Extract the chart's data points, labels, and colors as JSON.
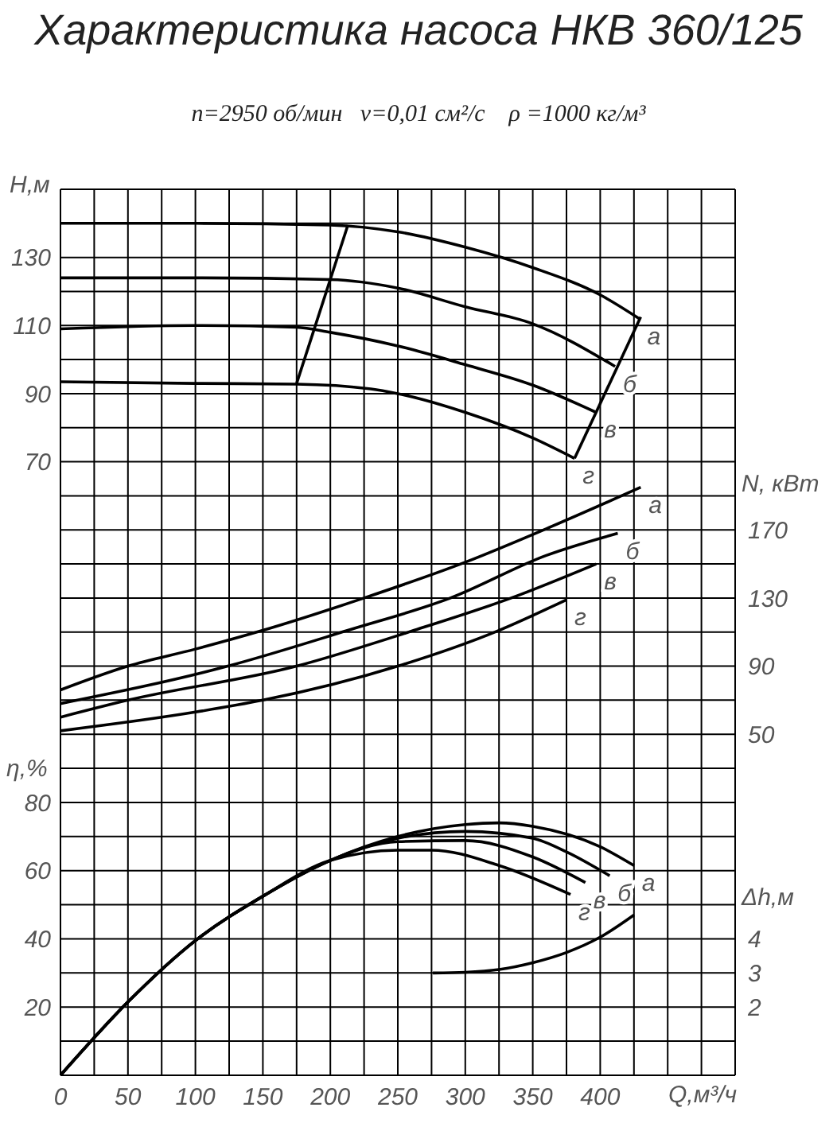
{
  "chart_data": [
    {
      "type": "line",
      "title": "Характеристика насоса НКВ 360/125",
      "subtitle": "n=2950 об/мин   ν=0,01 см²/с    ρ =1000 кг/м³",
      "ylabel": "H,м",
      "y2label": "N, кВт",
      "xlim": [
        0,
        500
      ],
      "xticks": [
        0,
        50,
        100,
        150,
        200,
        250,
        300,
        350,
        400
      ],
      "ylim": [
        -20,
        150
      ],
      "yticks": [
        70,
        90,
        110,
        130
      ],
      "y2lim": [
        30,
        370
      ],
      "y2ticks": [
        50,
        90,
        130,
        170
      ],
      "tick_labels": "y",
      "grid": true,
      "marker": "none",
      "line_style": "solid",
      "series": [
        {
          "name": "а",
          "color": "#000000",
          "x": [
            0,
            100,
            200,
            250,
            300,
            350,
            400,
            429
          ],
          "values": [
            140,
            140,
            139.5,
            137.5,
            133,
            127,
            119,
            112
          ]
        },
        {
          "name": "б",
          "color": "#000000",
          "x": [
            0,
            100,
            200,
            250,
            300,
            350,
            411
          ],
          "values": [
            124,
            124,
            123.5,
            121,
            115.5,
            110.5,
            98
          ]
        },
        {
          "name": "в",
          "color": "#000000",
          "x": [
            0,
            100,
            175,
            200,
            250,
            300,
            350,
            397
          ],
          "values": [
            109,
            110,
            109.5,
            108,
            104,
            98.5,
            92.5,
            84.5
          ]
        },
        {
          "name": "г",
          "color": "#000000",
          "x": [
            0,
            100,
            175,
            230,
            250,
            300,
            350,
            381
          ],
          "values": [
            93.5,
            93,
            92.8,
            91.4,
            90,
            84.5,
            77,
            71
          ]
        },
        {
          "color": "#000000",
          "x": [
            175,
            213
          ],
          "values": [
            93,
            139.5
          ]
        },
        {
          "color": "#000000",
          "x": [
            381,
            430
          ],
          "values": [
            71,
            112.5
          ]
        },
        {
          "name": "а",
          "color": "#000000",
          "axis": "y2",
          "x": [
            0,
            50,
            100,
            150,
            225,
            300,
            364,
            430
          ],
          "values": [
            76,
            90,
            100,
            111,
            130,
            151,
            172,
            195
          ]
        },
        {
          "name": "б",
          "color": "#000000",
          "axis": "y2",
          "x": [
            0,
            124,
            213,
            289,
            360,
            413
          ],
          "values": [
            68,
            90,
            111,
            130,
            155,
            168
          ]
        },
        {
          "name": "в",
          "color": "#000000",
          "axis": "y2",
          "x": [
            0,
            50,
            175,
            262,
            334,
            397
          ],
          "values": [
            60,
            70,
            90,
            111,
            130,
            150
          ]
        },
        {
          "name": "г",
          "color": "#000000",
          "axis": "y2",
          "x": [
            0,
            100,
            150,
            250,
            325,
            375
          ],
          "values": [
            52,
            63,
            70,
            90,
            111,
            129
          ]
        }
      ]
    },
    {
      "type": "line",
      "xlabel": "Q,м³/ч",
      "ylabel": "η,%",
      "y2label": "Δh,м",
      "xlim": [
        0,
        500
      ],
      "xticks": [
        0,
        50,
        100,
        150,
        200,
        250,
        300,
        350,
        400
      ],
      "ylim": [
        0,
        90
      ],
      "yticks": [
        20,
        40,
        60,
        80
      ],
      "y2lim": [
        0,
        9
      ],
      "y2ticks": [
        2,
        3,
        4
      ],
      "grid": true,
      "marker": "none",
      "line_style": "solid",
      "series": [
        {
          "name": "а",
          "color": "#000000",
          "x": [
            0,
            50,
            100,
            150,
            200,
            250,
            300,
            325,
            350,
            400,
            425
          ],
          "values": [
            0,
            21.5,
            39.5,
            52.5,
            63,
            70,
            73.5,
            74,
            73,
            67,
            61.5
          ]
        },
        {
          "name": "б",
          "color": "#000000",
          "x": [
            0,
            50,
            100,
            150,
            200,
            250,
            300,
            350,
            375,
            407
          ],
          "values": [
            0,
            21.5,
            39.5,
            52.5,
            63,
            69.5,
            71.5,
            69.5,
            65.5,
            58.5
          ]
        },
        {
          "name": "в",
          "color": "#000000",
          "x": [
            0,
            50,
            100,
            150,
            200,
            250,
            300,
            350,
            389
          ],
          "values": [
            0,
            21.5,
            39.5,
            52.5,
            63,
            68.5,
            68.8,
            64,
            56.5
          ]
        },
        {
          "name": "г",
          "color": "#000000",
          "x": [
            0,
            50,
            100,
            150,
            200,
            250,
            275,
            325,
            378
          ],
          "values": [
            0,
            21.5,
            39.5,
            52.5,
            63,
            66,
            66,
            61.5,
            53
          ]
        },
        {
          "color": "#000000",
          "axis": "y2",
          "x": [
            276,
            300,
            325,
            350,
            375,
            400,
            425
          ],
          "values": [
            3,
            3.02,
            3.1,
            3.3,
            3.6,
            4.05,
            4.7
          ]
        }
      ]
    }
  ]
}
